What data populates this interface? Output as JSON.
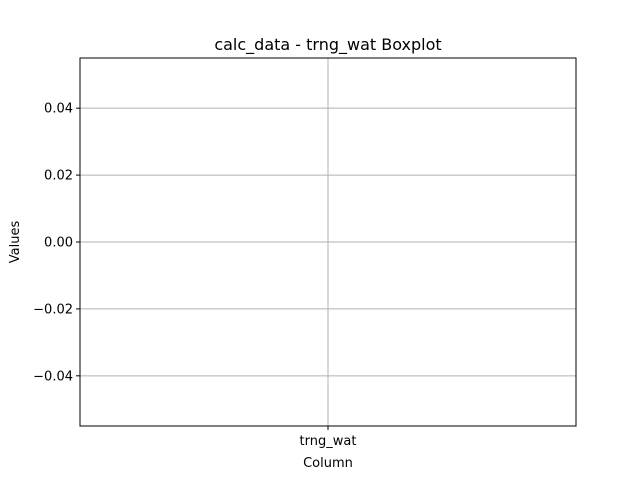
{
  "chart_data": {
    "type": "boxplot",
    "title": "calc_data - trng_wat Boxplot",
    "xlabel": "Column",
    "ylabel": "Values",
    "categories": [
      "trng_wat"
    ],
    "series": [
      {
        "values": []
      }
    ],
    "ylim": [
      -0.055,
      0.055
    ],
    "yticks": [
      0.04,
      0.02,
      0.0,
      -0.02,
      -0.04
    ],
    "ytick_labels": [
      "0.04",
      "0.02",
      "0.00",
      "−0.02",
      "−0.04"
    ],
    "grid": true,
    "legend": "none"
  },
  "colors": {
    "grid": "#b0b0b0",
    "axes": "#000000",
    "background": "#ffffff"
  }
}
